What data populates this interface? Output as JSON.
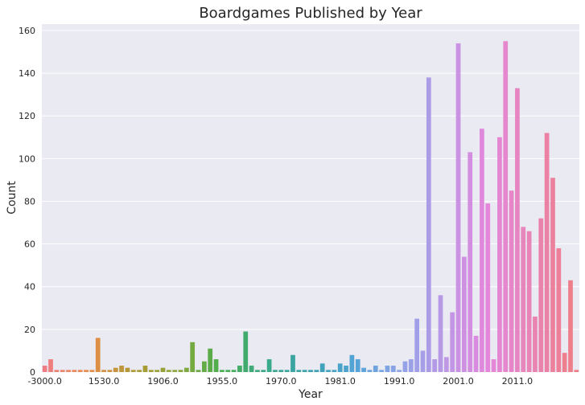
{
  "chart_data": {
    "type": "bar",
    "title": "Boardgames Published by Year",
    "xlabel": "Year",
    "ylabel": "Count",
    "ylim": [
      0,
      163
    ],
    "yticks": [
      0,
      20,
      40,
      60,
      80,
      100,
      120,
      140,
      160
    ],
    "xtick_labels": [
      {
        "index": 0,
        "label": "-3000.0"
      },
      {
        "index": 10,
        "label": "1530.0"
      },
      {
        "index": 20,
        "label": "1906.0"
      },
      {
        "index": 30,
        "label": "1955.0"
      },
      {
        "index": 40,
        "label": "1970.0"
      },
      {
        "index": 50,
        "label": "1981.0"
      },
      {
        "index": 60,
        "label": "1991.0"
      },
      {
        "index": 70,
        "label": "2001.0"
      },
      {
        "index": 80,
        "label": "2011.0"
      }
    ],
    "values": [
      3,
      6,
      1,
      1,
      1,
      1,
      1,
      1,
      1,
      16,
      1,
      1,
      2,
      3,
      2,
      1,
      1,
      3,
      1,
      1,
      2,
      1,
      1,
      1,
      2,
      14,
      1,
      5,
      11,
      6,
      1,
      1,
      1,
      3,
      19,
      3,
      1,
      1,
      6,
      1,
      1,
      1,
      8,
      1,
      1,
      1,
      1,
      4,
      1,
      1,
      4,
      3,
      8,
      6,
      2,
      1,
      3,
      1,
      3,
      3,
      1,
      5,
      6,
      25,
      10,
      138,
      6,
      36,
      7,
      28,
      154,
      54,
      103,
      17,
      114,
      79,
      6,
      110,
      155,
      85,
      133,
      68,
      66,
      26,
      72,
      112,
      91,
      58,
      9,
      43,
      1
    ],
    "grid": true,
    "background": "#eaeaf2",
    "gridColor": "#ffffff",
    "palette": [
      "#f07d84",
      "#e88c4a",
      "#b09a33",
      "#8aa83a",
      "#4aae4f",
      "#3aa98a",
      "#3aa3ae",
      "#52a3d6",
      "#8fa4e8",
      "#bb98e6",
      "#e487dc",
      "#e884b5",
      "#f07d84"
    ]
  }
}
